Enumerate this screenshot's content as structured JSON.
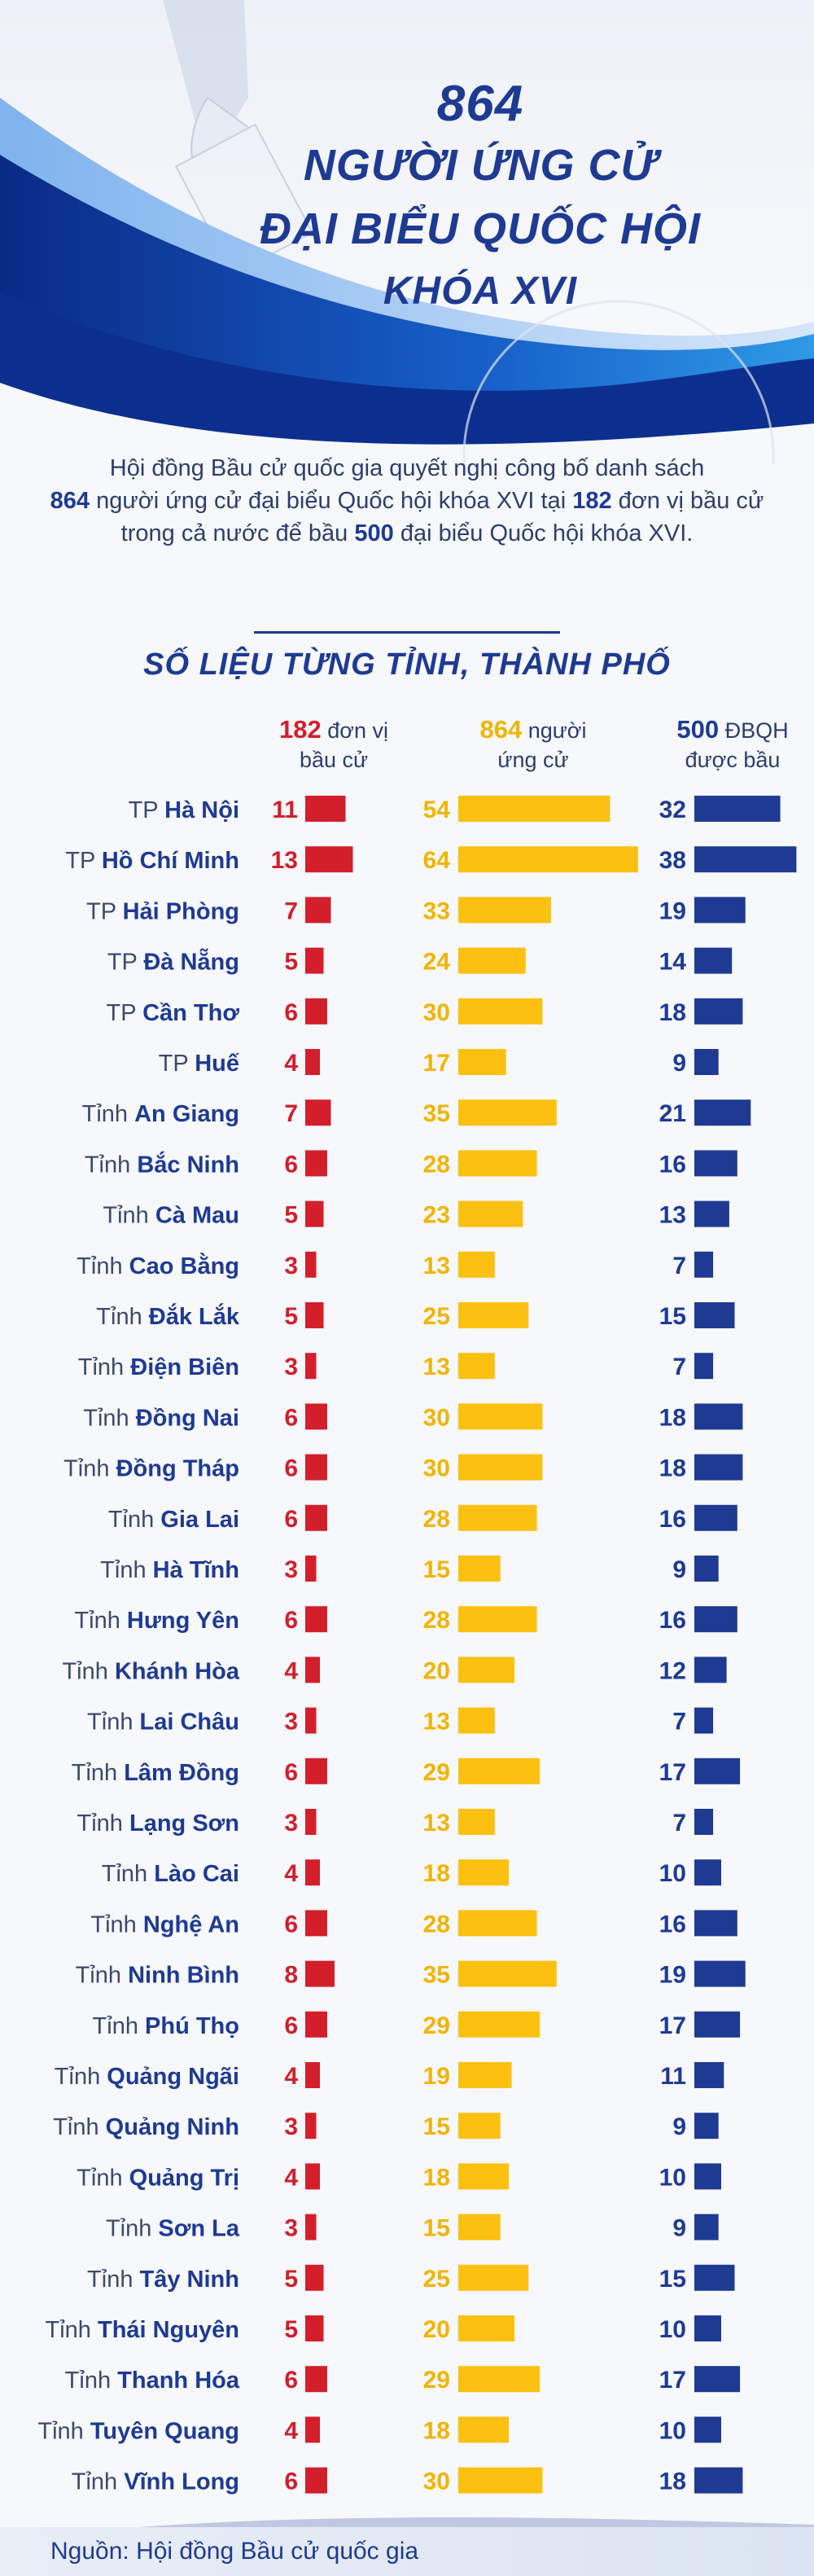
{
  "header": {
    "number": "864",
    "line1": "NGƯỜI ỨNG CỬ",
    "line2": "ĐẠI BIỂU QUỐC HỘI",
    "line3": "KHÓA XVI"
  },
  "intro": {
    "p1": "Hội đồng Bầu cử quốc gia quyết nghị công bố danh sách",
    "n864": "864",
    "p2": " người ứng cử đại biểu Quốc hội khóa XVI tại ",
    "n182": "182",
    "p3": " đơn vị bầu cử",
    "p4": "trong cả nước để bầu ",
    "n500": "500",
    "p5": " đại biểu Quốc hội khóa XVI."
  },
  "section_title": "SỐ LIỆU TỪNG TỈNH, THÀNH PHỐ",
  "column_headers": {
    "units": {
      "num": "182",
      "label1": " đơn vị",
      "label2": "bầu cử"
    },
    "candidates": {
      "num": "864",
      "label1": " người",
      "label2": "ứng cử"
    },
    "deputies": {
      "num": "500",
      "label1": " ĐBQH",
      "label2": "được bầu"
    }
  },
  "colors": {
    "units": "#d21f2b",
    "candidates": "#fcc010",
    "deputies": "#1e3a93",
    "candidates_text": "#f2b400",
    "row_label": "#3d4a6e",
    "row_name": "#1e3a93"
  },
  "chart_data": {
    "type": "bar",
    "title": "SỐ LIỆU TỪNG TỈNH, THÀNH PHỐ",
    "orientation": "horizontal",
    "categories": [
      {
        "prefix": "TP",
        "name": "Hà Nội"
      },
      {
        "prefix": "TP",
        "name": "Hồ Chí Minh"
      },
      {
        "prefix": "TP",
        "name": "Hải Phòng"
      },
      {
        "prefix": "TP",
        "name": "Đà Nẵng"
      },
      {
        "prefix": "TP",
        "name": "Cần Thơ"
      },
      {
        "prefix": "TP",
        "name": "Huế"
      },
      {
        "prefix": "Tỉnh",
        "name": "An Giang"
      },
      {
        "prefix": "Tỉnh",
        "name": "Bắc Ninh"
      },
      {
        "prefix": "Tỉnh",
        "name": "Cà Mau"
      },
      {
        "prefix": "Tỉnh",
        "name": "Cao Bằng"
      },
      {
        "prefix": "Tỉnh",
        "name": "Đắk Lắk"
      },
      {
        "prefix": "Tỉnh",
        "name": "Điện Biên"
      },
      {
        "prefix": "Tỉnh",
        "name": "Đồng Nai"
      },
      {
        "prefix": "Tỉnh",
        "name": "Đồng Tháp"
      },
      {
        "prefix": "Tỉnh",
        "name": "Gia Lai"
      },
      {
        "prefix": "Tỉnh",
        "name": "Hà Tĩnh"
      },
      {
        "prefix": "Tỉnh",
        "name": "Hưng Yên"
      },
      {
        "prefix": "Tỉnh",
        "name": "Khánh Hòa"
      },
      {
        "prefix": "Tỉnh",
        "name": "Lai Châu"
      },
      {
        "prefix": "Tỉnh",
        "name": "Lâm Đồng"
      },
      {
        "prefix": "Tỉnh",
        "name": "Lạng Sơn"
      },
      {
        "prefix": "Tỉnh",
        "name": "Lào Cai"
      },
      {
        "prefix": "Tỉnh",
        "name": "Nghệ An"
      },
      {
        "prefix": "Tỉnh",
        "name": "Ninh Bình"
      },
      {
        "prefix": "Tỉnh",
        "name": "Phú Thọ"
      },
      {
        "prefix": "Tỉnh",
        "name": "Quảng Ngãi"
      },
      {
        "prefix": "Tỉnh",
        "name": "Quảng Ninh"
      },
      {
        "prefix": "Tỉnh",
        "name": "Quảng Trị"
      },
      {
        "prefix": "Tỉnh",
        "name": "Sơn La"
      },
      {
        "prefix": "Tỉnh",
        "name": "Tây Ninh"
      },
      {
        "prefix": "Tỉnh",
        "name": "Thái Nguyên"
      },
      {
        "prefix": "Tỉnh",
        "name": "Thanh Hóa"
      },
      {
        "prefix": "Tỉnh",
        "name": "Tuyên Quang"
      },
      {
        "prefix": "Tỉnh",
        "name": "Vĩnh Long"
      }
    ],
    "series": [
      {
        "name": "đơn vị bầu cử",
        "total": 182,
        "values": [
          11,
          13,
          7,
          5,
          6,
          4,
          7,
          6,
          5,
          3,
          5,
          3,
          6,
          6,
          6,
          3,
          6,
          4,
          3,
          6,
          3,
          4,
          6,
          8,
          6,
          4,
          3,
          4,
          3,
          5,
          5,
          6,
          4,
          6
        ]
      },
      {
        "name": "người ứng cử",
        "total": 864,
        "values": [
          54,
          64,
          33,
          24,
          30,
          17,
          35,
          28,
          23,
          13,
          25,
          13,
          30,
          30,
          28,
          15,
          28,
          20,
          13,
          29,
          13,
          18,
          28,
          35,
          29,
          19,
          15,
          18,
          15,
          25,
          20,
          29,
          18,
          30
        ]
      },
      {
        "name": "ĐBQH được bầu",
        "total": 500,
        "values": [
          32,
          38,
          19,
          14,
          18,
          9,
          21,
          16,
          13,
          7,
          15,
          7,
          18,
          18,
          16,
          9,
          16,
          12,
          7,
          17,
          7,
          10,
          16,
          19,
          17,
          11,
          9,
          10,
          9,
          15,
          10,
          17,
          10,
          18
        ]
      }
    ]
  },
  "footer": {
    "source": "Nguồn: Hội đồng Bầu cử quốc gia"
  }
}
